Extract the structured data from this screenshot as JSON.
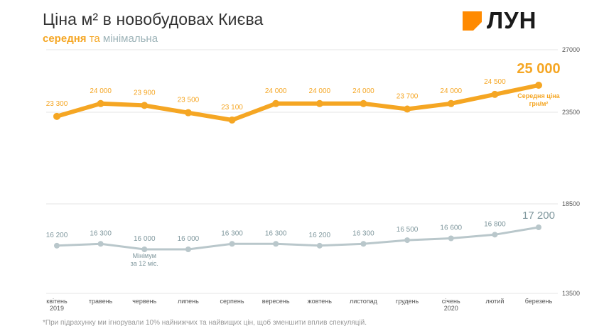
{
  "header": {
    "title": "Ціна м² в новобудовах Києва",
    "subtitle_avg": "середня",
    "subtitle_and": " та ",
    "subtitle_min": "мінімальна"
  },
  "logo": {
    "text": "ЛУН"
  },
  "footnote": "*При підрахунку ми ігнорували 10% найнижчих та найвищих цін, щоб зменшити вплив спекуляцій.",
  "chart_data": {
    "type": "line",
    "categories": [
      [
        "квітень",
        "2019"
      ],
      [
        "травень"
      ],
      [
        "червень"
      ],
      [
        "липень"
      ],
      [
        "серпень"
      ],
      [
        "вересень"
      ],
      [
        "жовтень"
      ],
      [
        "листопад"
      ],
      [
        "грудень"
      ],
      [
        "січень",
        "2020"
      ],
      [
        "лютий"
      ],
      [
        "березень"
      ]
    ],
    "y_ticks": [
      "27000",
      "23500",
      "18500",
      "13500"
    ],
    "series": [
      {
        "name": "середня",
        "color": "#f5a623",
        "values": [
          23300,
          24000,
          23900,
          23500,
          23100,
          24000,
          24000,
          24000,
          23700,
          24000,
          24500,
          25000
        ],
        "labels": [
          "23 300",
          "24 000",
          "23 900",
          "23 500",
          "23 100",
          "24 000",
          "24 000",
          "24 000",
          "23 700",
          "24 000",
          "24 500",
          "25 000"
        ],
        "panel": "top"
      },
      {
        "name": "мінімальна",
        "color": "#b9c7cb",
        "label_color": "#7f979d",
        "values": [
          16200,
          16300,
          16000,
          16000,
          16300,
          16300,
          16200,
          16300,
          16500,
          16600,
          16800,
          17200
        ],
        "labels": [
          "16 200",
          "16 300",
          "16 000",
          "16 000",
          "16 300",
          "16 300",
          "16 200",
          "16 300",
          "16 500",
          "16 600",
          "16 800",
          "17 200"
        ],
        "panel": "bottom"
      }
    ],
    "annotations": {
      "avg_end": [
        "Середня ціна",
        "грн/м²"
      ],
      "min_point": [
        "Мінімум",
        "за 12 міс."
      ],
      "min_point_index": 2
    }
  }
}
